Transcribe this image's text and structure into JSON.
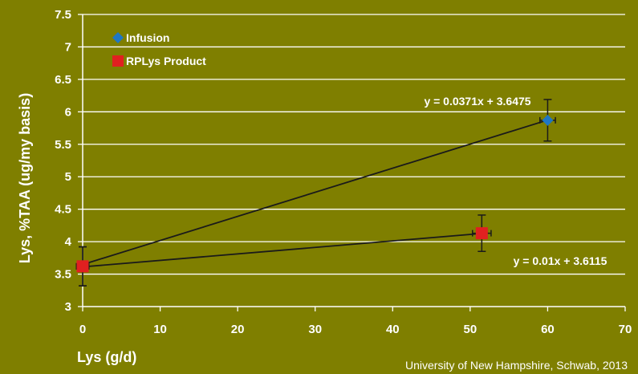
{
  "chart_data": {
    "type": "scatter",
    "xlabel": "Lys (g/d)",
    "ylabel": "Lys, %TAA (ug/my basis)",
    "xlim": [
      0,
      70
    ],
    "ylim": [
      3,
      7.5
    ],
    "x_ticks": [
      "0",
      "10",
      "20",
      "30",
      "40",
      "50",
      "60",
      "70"
    ],
    "y_ticks": [
      "3",
      "3.5",
      "4",
      "4.5",
      "5",
      "5.5",
      "6",
      "6.5",
      "7",
      "7.5"
    ],
    "grid": "horizontal",
    "legend_position": "top-left",
    "series": [
      {
        "name": "Infusion",
        "marker": "diamond",
        "color": "#1f77c4",
        "points": [
          {
            "x": 0,
            "y": 3.62,
            "y_err": 0.3,
            "x_err": 0.8
          },
          {
            "x": 60,
            "y": 5.87,
            "y_err": 0.32,
            "x_err": 1.0
          }
        ],
        "trendline": {
          "slope": 0.0371,
          "intercept": 3.6475,
          "equation": "y = 0.0371x + 3.6475"
        }
      },
      {
        "name": "RPLys Product",
        "marker": "square",
        "color": "#e02020",
        "points": [
          {
            "x": 0,
            "y": 3.62,
            "y_err": 0.3,
            "x_err": 0.8
          },
          {
            "x": 51.5,
            "y": 4.13,
            "y_err": 0.28,
            "x_err": 1.2
          }
        ],
        "trendline": {
          "slope": 0.01,
          "intercept": 3.6115,
          "equation": "y = 0.01x + 3.6115"
        }
      }
    ]
  },
  "credit": "University of New Hampshire, Schwab, 2013"
}
